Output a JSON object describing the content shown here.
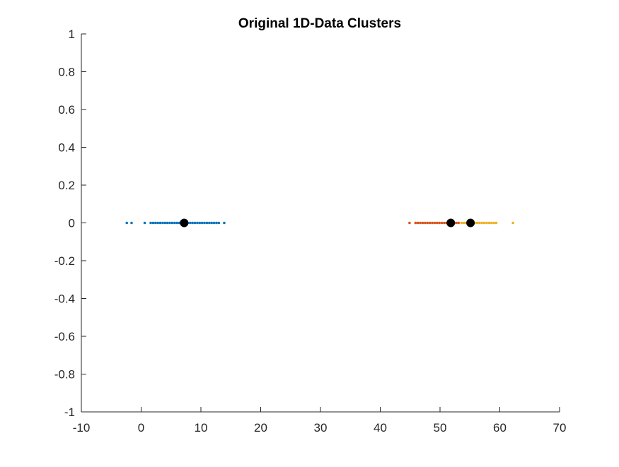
{
  "chart_data": {
    "type": "scatter",
    "title": "Original 1D-Data Clusters",
    "xlabel": "",
    "ylabel": "",
    "xlim": [
      -10,
      70
    ],
    "ylim": [
      -1,
      1
    ],
    "grid": false,
    "xticks": [
      -10,
      0,
      10,
      20,
      30,
      40,
      50,
      60,
      70
    ],
    "xtick_labels": [
      "-10",
      "0",
      "10",
      "20",
      "30",
      "40",
      "50",
      "60",
      "70"
    ],
    "yticks": [
      1,
      0.8,
      0.6,
      0.4,
      0.2,
      0,
      -0.2,
      -0.4,
      -0.6,
      -0.8,
      -1
    ],
    "ytick_labels": [
      "1",
      "0.8",
      "0.6",
      "0.4",
      "0.2",
      "0",
      "-0.2",
      "-0.4",
      "-0.6",
      "-0.8",
      "-1"
    ],
    "series": [
      {
        "color": "#0072BD",
        "marker": "point",
        "x": [
          -2.4,
          -1.6,
          0.6,
          1.6,
          2.0,
          2.4,
          2.8,
          3.2,
          3.6,
          4.0,
          4.4,
          4.8,
          5.2,
          5.6,
          6.0,
          6.4,
          6.8,
          7.4,
          7.8,
          8.2,
          8.6,
          9.0,
          9.4,
          9.8,
          10.2,
          10.6,
          11.0,
          11.4,
          11.8,
          12.2,
          12.6,
          13.0,
          13.9
        ],
        "y": [
          0,
          0,
          0,
          0,
          0,
          0,
          0,
          0,
          0,
          0,
          0,
          0,
          0,
          0,
          0,
          0,
          0,
          0,
          0,
          0,
          0,
          0,
          0,
          0,
          0,
          0,
          0,
          0,
          0,
          0,
          0,
          0,
          0
        ]
      },
      {
        "color": "#D95319",
        "marker": "point",
        "x": [
          44.9,
          45.9,
          46.3,
          46.7,
          47.1,
          47.5,
          47.9,
          48.3,
          48.7,
          49.1,
          49.5,
          49.9,
          50.3,
          50.7,
          51.1,
          51.5,
          52.3,
          52.7,
          53.1
        ],
        "y": [
          0,
          0,
          0,
          0,
          0,
          0,
          0,
          0,
          0,
          0,
          0,
          0,
          0,
          0,
          0,
          0,
          0,
          0,
          0
        ]
      },
      {
        "color": "#EDB120",
        "marker": "point",
        "x": [
          53.6,
          54.0,
          54.4,
          54.8,
          55.4,
          55.8,
          56.2,
          56.6,
          57.0,
          57.4,
          57.8,
          58.2,
          58.6,
          59.0,
          59.4,
          62.2
        ],
        "y": [
          0,
          0,
          0,
          0,
          0,
          0,
          0,
          0,
          0,
          0,
          0,
          0,
          0,
          0,
          0,
          0
        ]
      }
    ],
    "centroids": {
      "color": "#000000",
      "x": [
        7.2,
        51.8,
        55.1
      ],
      "y": [
        0,
        0,
        0
      ]
    }
  }
}
